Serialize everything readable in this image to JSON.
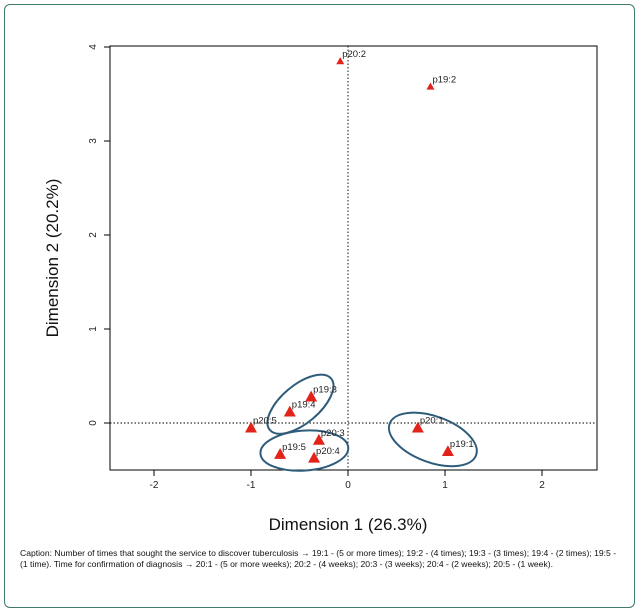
{
  "chart_data": {
    "type": "scatter",
    "xlabel": "Dimension 1 (26.3%)",
    "ylabel": "Dimension 2 (20.2%)",
    "xlim": [
      -2.5,
      2.5
    ],
    "ylim": [
      -0.45,
      4.0
    ],
    "xticks": [
      "-2",
      "-1",
      "0",
      "1",
      "2"
    ],
    "yticks": [
      "0",
      "1",
      "2",
      "3",
      "4"
    ],
    "grid": false,
    "reference_lines": {
      "x": 0,
      "y": 0
    },
    "points": [
      {
        "label": "p20:2",
        "x": -0.08,
        "y": 3.85
      },
      {
        "label": "p19:2",
        "x": 0.85,
        "y": 3.58
      },
      {
        "label": "p19:3",
        "x": -0.38,
        "y": 0.28
      },
      {
        "label": "p19:4",
        "x": -0.6,
        "y": 0.12
      },
      {
        "label": "p20:5",
        "x": -1.0,
        "y": -0.05
      },
      {
        "label": "p20:3",
        "x": -0.3,
        "y": -0.18
      },
      {
        "label": "p19:5",
        "x": -0.7,
        "y": -0.33
      },
      {
        "label": "p20:4",
        "x": -0.35,
        "y": -0.37
      },
      {
        "label": "p20:1",
        "x": 0.72,
        "y": -0.05
      },
      {
        "label": "p19:1",
        "x": 1.03,
        "y": -0.3
      }
    ],
    "marker_color": "#e2231a",
    "ellipse_color": "#2e5c7a",
    "ellipses": [
      {
        "members": [
          "p19:3",
          "p19:4"
        ]
      },
      {
        "members": [
          "p19:5",
          "p20:3",
          "p20:4"
        ]
      },
      {
        "members": [
          "p20:1",
          "p19:1"
        ]
      }
    ]
  },
  "caption": "Caption: Number of times that sought the service to discover tuberculosis → 19:1 - (5 or more times); 19:2 - (4 times); 19:3 - (3 times); 19:4 - (2 times); 19:5 - (1 time). Time for confirmation of diagnosis → 20:1 - (5 or more weeks); 20:2 - (4 weeks); 20:3 - (3 weeks); 20:4 - (2 weeks); 20:5 - (1 week).",
  "colors": {
    "frame_border": "#3f7a6e"
  }
}
